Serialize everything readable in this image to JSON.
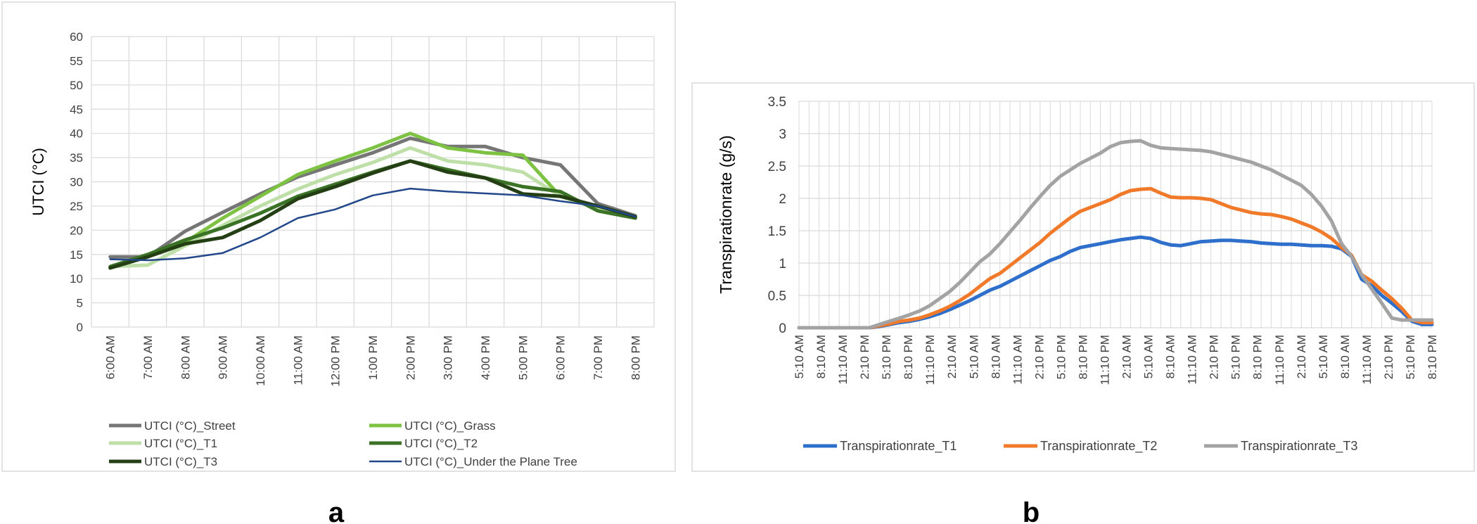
{
  "chart_data": [
    {
      "id": "a",
      "type": "line",
      "panel_label": "a",
      "title": "",
      "xlabel": "",
      "ylabel": "UTCI  (°C)",
      "ylim": [
        0,
        60
      ],
      "yticks": [
        0,
        5,
        10,
        15,
        20,
        25,
        30,
        35,
        40,
        45,
        50,
        55,
        60
      ],
      "grid": true,
      "legend_position": "bottom",
      "categories": [
        "6:00 AM",
        "7:00 AM",
        "8:00 AM",
        "9:00 AM",
        "10:00 AM",
        "11:00 AM",
        "12:00 PM",
        "1:00 PM",
        "2:00 PM",
        "3:00 PM",
        "4:00 PM",
        "5:00 PM",
        "6:00 PM",
        "7:00 PM",
        "8:00 PM"
      ],
      "series": [
        {
          "name": "UTCI  (°C)_Street",
          "color": "#767676",
          "width": 5,
          "values": [
            14.5,
            14.5,
            19.8,
            23.7,
            27.5,
            31.0,
            33.5,
            36.0,
            39.0,
            37.3,
            37.3,
            35.0,
            33.5,
            25.5,
            23.0
          ]
        },
        {
          "name": "UTCI  (°C)_Grass",
          "color": "#7dc242",
          "width": 5,
          "values": [
            12.5,
            14.5,
            17.5,
            22.5,
            27.0,
            31.5,
            34.3,
            37.0,
            40.0,
            37.0,
            36.0,
            35.5,
            27.0,
            24.5,
            22.5
          ]
        },
        {
          "name": "UTCI  (°C)_T1",
          "color": "#bfdfa8",
          "width": 5,
          "values": [
            12.5,
            12.8,
            16.8,
            21.0,
            25.0,
            28.5,
            31.5,
            34.0,
            37.0,
            34.3,
            33.5,
            32.0,
            27.0,
            24.5,
            22.5
          ]
        },
        {
          "name": "UTCI  (°C)_T2",
          "color": "#3b7326",
          "width": 5,
          "values": [
            12.5,
            15.0,
            18.0,
            20.5,
            23.5,
            27.0,
            29.5,
            32.0,
            34.3,
            32.5,
            30.8,
            29.0,
            28.0,
            24.0,
            22.5
          ]
        },
        {
          "name": "UTCI  (°C)_T3",
          "color": "#243f14",
          "width": 5,
          "values": [
            12.2,
            14.5,
            17.2,
            18.5,
            22.0,
            26.5,
            29.0,
            31.8,
            34.3,
            32.0,
            30.8,
            27.5,
            27.0,
            25.0,
            22.8
          ]
        },
        {
          "name": "UTCI  (°C)_Under the Plane Tree",
          "color": "#22478a",
          "width": 2.5,
          "values": [
            14.0,
            13.8,
            14.2,
            15.3,
            18.5,
            22.5,
            24.3,
            27.2,
            28.6,
            28.0,
            27.6,
            27.2,
            26.0,
            25.0,
            22.8
          ]
        }
      ]
    },
    {
      "id": "b",
      "type": "line",
      "panel_label": "b",
      "title": "",
      "xlabel": "",
      "ylabel": "Transpirationrate (g/s)",
      "ylim": [
        0,
        3.5
      ],
      "yticks": [
        "0",
        "0.5",
        "1",
        "1.5",
        "2",
        "2.5",
        "3",
        "3.5"
      ],
      "grid": true,
      "legend_position": "bottom",
      "tick_labels": [
        "5:10 AM",
        "8:10 AM",
        "11:10 AM",
        "2:10 PM",
        "5:10 PM",
        "8:10 PM",
        "11:10 PM",
        "2:10 AM",
        "5:10 AM",
        "8:10 AM",
        "11:10 AM",
        "2:10 PM",
        "5:10 PM",
        "8:10 PM",
        "11:10 PM",
        "2:10 AM",
        "5:10 AM",
        "8:10 AM",
        "11:10 AM",
        "2:10 PM",
        "5:10 PM",
        "8:10 PM",
        "11:10 PM",
        "2:10 AM",
        "5:10 AM",
        "8:10 AM",
        "11:10 AM",
        "2:10 PM",
        "5:10 PM",
        "8:10 PM"
      ],
      "series": [
        {
          "name": "Transpirationrate_T1",
          "color": "#2e6fcb",
          "width": 5,
          "values": [
            0.0,
            0.0,
            0.0,
            0.0,
            0.0,
            0.0,
            0.0,
            0.0,
            0.02,
            0.05,
            0.08,
            0.1,
            0.13,
            0.17,
            0.22,
            0.28,
            0.35,
            0.42,
            0.5,
            0.58,
            0.64,
            0.72,
            0.8,
            0.88,
            0.96,
            1.04,
            1.1,
            1.18,
            1.24,
            1.27,
            1.3,
            1.33,
            1.36,
            1.38,
            1.4,
            1.38,
            1.32,
            1.28,
            1.27,
            1.3,
            1.33,
            1.34,
            1.35,
            1.35,
            1.34,
            1.33,
            1.31,
            1.3,
            1.29,
            1.29,
            1.28,
            1.27,
            1.27,
            1.26,
            1.22,
            1.1,
            0.75,
            0.65,
            0.5,
            0.38,
            0.25,
            0.1,
            0.05,
            0.05
          ]
        },
        {
          "name": "Transpirationrate_T2",
          "color": "#f07a2a",
          "width": 5,
          "values": [
            0.0,
            0.0,
            0.0,
            0.0,
            0.0,
            0.0,
            0.0,
            0.0,
            0.03,
            0.06,
            0.1,
            0.12,
            0.15,
            0.2,
            0.26,
            0.33,
            0.42,
            0.52,
            0.64,
            0.76,
            0.84,
            0.96,
            1.08,
            1.2,
            1.32,
            1.46,
            1.58,
            1.7,
            1.8,
            1.86,
            1.92,
            1.98,
            2.06,
            2.12,
            2.14,
            2.15,
            2.08,
            2.02,
            2.01,
            2.01,
            2.0,
            1.98,
            1.92,
            1.86,
            1.82,
            1.78,
            1.76,
            1.75,
            1.72,
            1.68,
            1.62,
            1.56,
            1.48,
            1.38,
            1.24,
            1.12,
            0.82,
            0.72,
            0.58,
            0.45,
            0.3,
            0.12,
            0.08,
            0.08
          ]
        },
        {
          "name": "Transpirationrate_T3",
          "color": "#a3a3a3",
          "width": 5,
          "values": [
            0.0,
            0.0,
            0.0,
            0.0,
            0.0,
            0.0,
            0.0,
            0.0,
            0.05,
            0.1,
            0.15,
            0.2,
            0.26,
            0.34,
            0.45,
            0.56,
            0.7,
            0.86,
            1.02,
            1.14,
            1.3,
            1.48,
            1.66,
            1.85,
            2.03,
            2.2,
            2.34,
            2.44,
            2.54,
            2.62,
            2.7,
            2.8,
            2.86,
            2.88,
            2.89,
            2.82,
            2.78,
            2.77,
            2.76,
            2.75,
            2.74,
            2.72,
            2.68,
            2.64,
            2.6,
            2.56,
            2.5,
            2.44,
            2.36,
            2.28,
            2.2,
            2.06,
            1.88,
            1.65,
            1.3,
            1.1,
            0.82,
            0.6,
            0.38,
            0.15,
            0.12,
            0.12,
            0.12,
            0.12
          ]
        }
      ]
    }
  ]
}
